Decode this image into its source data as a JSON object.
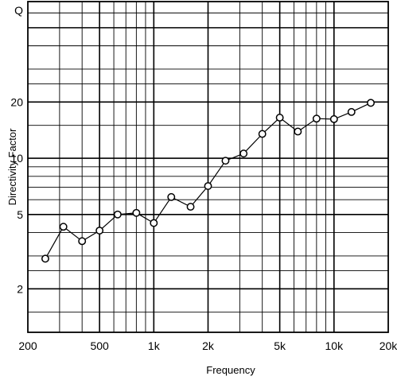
{
  "chart_data": {
    "type": "line",
    "title": "",
    "xlabel": "Frequency",
    "ylabel": "Directivity Factor",
    "x_scale": "log",
    "y_scale": "log",
    "xlim": [
      200,
      20000
    ],
    "ylim": [
      1.17,
      69
    ],
    "grid": true,
    "line_color": "#000000",
    "marker": "open-circle",
    "x_ticks": [
      {
        "value": 200,
        "label": "200"
      },
      {
        "value": 500,
        "label": "500"
      },
      {
        "value": 1000,
        "label": "1k"
      },
      {
        "value": 2000,
        "label": "2k"
      },
      {
        "value": 5000,
        "label": "5k"
      },
      {
        "value": 10000,
        "label": "10k"
      },
      {
        "value": 20000,
        "label": "20k"
      }
    ],
    "y_ticks": [
      {
        "value": 2,
        "label": "2"
      },
      {
        "value": 5,
        "label": "5"
      },
      {
        "value": 10,
        "label": "10"
      },
      {
        "value": 20,
        "label": "20"
      },
      {
        "value": 69,
        "label": "Q"
      }
    ],
    "series": [
      {
        "x": [
          250,
          315,
          400,
          500,
          630,
          800,
          1000,
          1250,
          1600,
          2000,
          2500,
          3150,
          4000,
          5000,
          6300,
          8000,
          10000,
          12500,
          16000
        ],
        "y": [
          2.9,
          4.3,
          3.6,
          4.1,
          5.0,
          5.1,
          4.5,
          6.2,
          5.5,
          7.1,
          9.7,
          10.6,
          13.5,
          16.5,
          13.9,
          16.3,
          16.2,
          17.7,
          19.8
        ]
      }
    ]
  }
}
